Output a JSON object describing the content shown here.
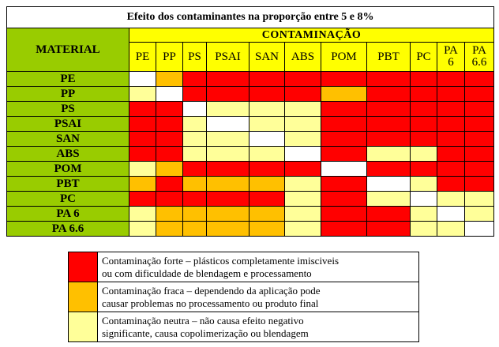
{
  "title": "Efeito dos contaminantes na proporção entre 5 e 8%",
  "material_header": "MATERIAL",
  "contamination_header": "CONTAMINAÇÃO",
  "columns": [
    "PE",
    "PP",
    "PS",
    "PSAI",
    "SAN",
    "ABS",
    "POM",
    "PBT",
    "PC",
    "PA 6",
    "PA 6.6"
  ],
  "colors": {
    "S": "#ff0000",
    "F": "#ffc000",
    "N": "#ffff99",
    "W": "#ffffff"
  },
  "rows": [
    {
      "material": "PE",
      "cells": [
        "W",
        "F",
        "S",
        "S",
        "S",
        "S",
        "S",
        "S",
        "S",
        "S",
        "S"
      ]
    },
    {
      "material": "PP",
      "cells": [
        "N",
        "W",
        "S",
        "S",
        "S",
        "S",
        "F",
        "S",
        "S",
        "S",
        "S"
      ]
    },
    {
      "material": "PS",
      "cells": [
        "S",
        "S",
        "W",
        "N",
        "N",
        "N",
        "S",
        "S",
        "S",
        "S",
        "S"
      ]
    },
    {
      "material": "PSAI",
      "cells": [
        "S",
        "S",
        "N",
        "W",
        "N",
        "N",
        "S",
        "S",
        "S",
        "S",
        "S"
      ]
    },
    {
      "material": "SAN",
      "cells": [
        "S",
        "S",
        "N",
        "N",
        "W",
        "N",
        "S",
        "S",
        "S",
        "S",
        "S"
      ]
    },
    {
      "material": "ABS",
      "cells": [
        "S",
        "S",
        "N",
        "N",
        "N",
        "W",
        "S",
        "N",
        "N",
        "S",
        "S"
      ]
    },
    {
      "material": "POM",
      "cells": [
        "N",
        "F",
        "S",
        "S",
        "S",
        "S",
        "W",
        "S",
        "S",
        "S",
        "S"
      ]
    },
    {
      "material": "PBT",
      "cells": [
        "F",
        "S",
        "F",
        "F",
        "F",
        "N",
        "S",
        "W",
        "N",
        "S",
        "S"
      ]
    },
    {
      "material": "PC",
      "cells": [
        "S",
        "S",
        "S",
        "S",
        "S",
        "N",
        "S",
        "N",
        "W",
        "N",
        "N"
      ]
    },
    {
      "material": "PA 6",
      "cells": [
        "N",
        "F",
        "F",
        "F",
        "F",
        "N",
        "S",
        "S",
        "N",
        "W",
        "N"
      ]
    },
    {
      "material": "PA 6.6",
      "cells": [
        "N",
        "F",
        "F",
        "F",
        "F",
        "N",
        "S",
        "S",
        "N",
        "N",
        "W"
      ]
    }
  ],
  "legend": [
    {
      "key": "S",
      "lines": [
        "Contaminação forte – plásticos completamente imisciveis",
        "ou com dificuldade de blendagem e processamento"
      ]
    },
    {
      "key": "F",
      "lines": [
        "Contaminação fraca – dependendo da aplicação pode",
        "causar problemas no processamento ou produto final"
      ]
    },
    {
      "key": "N",
      "lines": [
        "Contaminação neutra – não causa efeito negativo",
        "significante, causa copolimerização ou blendagem"
      ]
    }
  ]
}
